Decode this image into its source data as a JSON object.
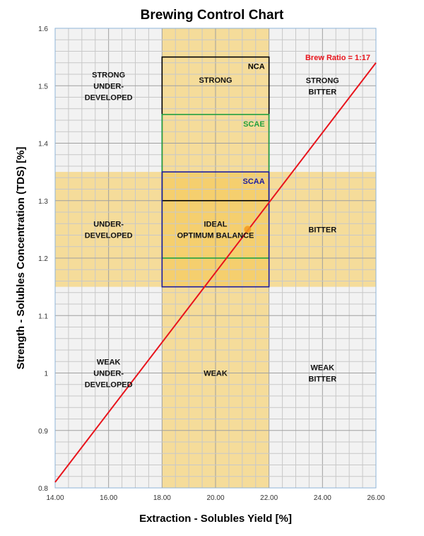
{
  "chart_data": {
    "type": "line",
    "title": "Brewing Control Chart",
    "xlabel": "Extraction  - Solubles  Yield [%]",
    "ylabel": "Strength - Solubles Concentration  (TDS) [%]",
    "xlim": [
      14,
      26
    ],
    "ylim": [
      0.8,
      1.6
    ],
    "x_ticks": [
      "14.00",
      "16.00",
      "18.00",
      "20.00",
      "22.00",
      "24.00",
      "26.00"
    ],
    "y_ticks": [
      "0.8",
      "0.9",
      "1",
      "1.1",
      "1.2",
      "1.3",
      "1.4",
      "1.5",
      "1.6"
    ],
    "grid": true,
    "colors": {
      "band": "#f5dc9a",
      "band_overlap": "#f5cf6e",
      "background": "#f2f2f2",
      "line": "#e8141c",
      "point": "#f39a1e",
      "nca": "#000000",
      "scae": "#22a040",
      "scaa": "#1c1ca0"
    },
    "bands": {
      "extraction": [
        18,
        22
      ],
      "strength": [
        1.15,
        1.35
      ]
    },
    "standards": [
      {
        "name": "NCA",
        "x": [
          18,
          22
        ],
        "y": [
          1.3,
          1.55
        ],
        "color": "#000000"
      },
      {
        "name": "SCAE",
        "x": [
          18,
          22
        ],
        "y": [
          1.2,
          1.45
        ],
        "color": "#22a040"
      },
      {
        "name": "SCAA",
        "x": [
          18,
          22
        ],
        "y": [
          1.15,
          1.35
        ],
        "color": "#1c1ca0"
      }
    ],
    "series": [
      {
        "name": "Brew Ratio = 1:17",
        "x": [
          14,
          26
        ],
        "y": [
          0.81,
          1.54
        ]
      }
    ],
    "point": {
      "x": 21.2,
      "y": 1.25
    },
    "regions": [
      {
        "lines": [
          "STRONG",
          "UNDER-",
          "DEVELOPED"
        ],
        "x": 16,
        "y": 1.5
      },
      {
        "lines": [
          "STRONG"
        ],
        "x": 20,
        "y": 1.51
      },
      {
        "lines": [
          "STRONG",
          "BITTER"
        ],
        "x": 24,
        "y": 1.5
      },
      {
        "lines": [
          "UNDER-",
          "DEVELOPED"
        ],
        "x": 16,
        "y": 1.25
      },
      {
        "lines": [
          "IDEAL",
          "OPTIMUM BALANCE"
        ],
        "x": 20,
        "y": 1.25
      },
      {
        "lines": [
          "BITTER"
        ],
        "x": 24,
        "y": 1.25
      },
      {
        "lines": [
          "WEAK",
          "UNDER-",
          "DEVELOPED"
        ],
        "x": 16,
        "y": 1.0
      },
      {
        "lines": [
          "WEAK"
        ],
        "x": 20,
        "y": 1.0
      },
      {
        "lines": [
          "WEAK",
          "BITTER"
        ],
        "x": 24,
        "y": 1.0
      }
    ]
  }
}
